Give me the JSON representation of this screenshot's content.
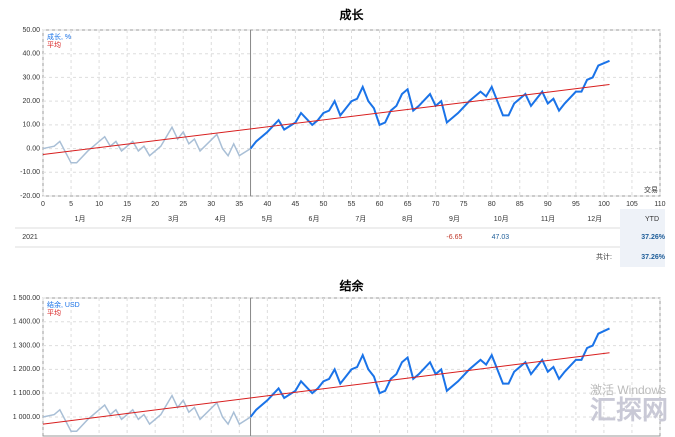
{
  "chart_data": [
    {
      "type": "line",
      "title": "成长",
      "x_corner_label": "交易",
      "grid": true,
      "legend": "top-left",
      "vline": 37,
      "xlim": [
        0,
        110
      ],
      "xticks": [
        0,
        5,
        10,
        15,
        20,
        25,
        30,
        35,
        40,
        45,
        50,
        55,
        60,
        65,
        70,
        75,
        80,
        85,
        90,
        95,
        100,
        105,
        110
      ],
      "show_xtick_labels": true,
      "ylim": [
        -20,
        50
      ],
      "yticks": [
        {
          "value": -20,
          "label": "-20.00"
        },
        {
          "value": -10,
          "label": "-10.00"
        },
        {
          "value": 0,
          "label": "0.00"
        },
        {
          "value": 10,
          "label": "10.00"
        },
        {
          "value": 20,
          "label": "20.00"
        },
        {
          "value": 30,
          "label": "30.00"
        },
        {
          "value": 40,
          "label": "40.00"
        },
        {
          "value": 50,
          "label": "50.00"
        }
      ],
      "series": [
        {
          "name": "成长, %",
          "color": "#1a73e8",
          "history_color": "#a9bfd6",
          "x": [
            0,
            2,
            3,
            5,
            6,
            8,
            11,
            12,
            13,
            14,
            16,
            17,
            18,
            19,
            21,
            22,
            23,
            24,
            25,
            26,
            27,
            28,
            31,
            32,
            33,
            34,
            35,
            37,
            38,
            40,
            42,
            43,
            45,
            46,
            48,
            49,
            50,
            51,
            52,
            53,
            55,
            56,
            57,
            58,
            59,
            60,
            61,
            62,
            63,
            64,
            65,
            66,
            67,
            69,
            70,
            71,
            72,
            74,
            76,
            78,
            79,
            80,
            81,
            82,
            83,
            84,
            86,
            87,
            89,
            90,
            91,
            92,
            93,
            95,
            96,
            97,
            98,
            99,
            101
          ],
          "values": [
            0,
            1,
            3,
            -6,
            -6,
            -1,
            5,
            1,
            3,
            -1,
            3,
            -1,
            1,
            -3,
            1,
            5,
            9,
            4,
            7,
            2,
            4,
            -1,
            6,
            0,
            -3,
            2,
            -3,
            0,
            3,
            7,
            12,
            8,
            11,
            15,
            10,
            12,
            15,
            16,
            20,
            14,
            20,
            21,
            26,
            20,
            17,
            10,
            11,
            16,
            18,
            23,
            25,
            16,
            18,
            23,
            18,
            20,
            11,
            15,
            20,
            24,
            22,
            26,
            20,
            14,
            14,
            19,
            23,
            18,
            24,
            19,
            21,
            16,
            19,
            24,
            24,
            29,
            30,
            35,
            37
          ]
        },
        {
          "name": "平均",
          "color": "#d81e1e",
          "x": [
            0,
            101
          ],
          "values": [
            -2.5,
            27
          ]
        }
      ],
      "table": {
        "months": [
          "1月",
          "2月",
          "3月",
          "4月",
          "5月",
          "6月",
          "7月",
          "8月",
          "9月",
          "10月",
          "11月",
          "12月"
        ],
        "total_header": "YTD",
        "rows": [
          {
            "year": "2021",
            "values": [
              null,
              null,
              null,
              null,
              null,
              null,
              null,
              null,
              -6.65,
              47.03,
              null,
              null
            ],
            "ytd": "37.26%"
          }
        ],
        "total_label": "共计:",
        "total": "37.26%"
      }
    },
    {
      "type": "line",
      "title": "结余",
      "grid": true,
      "legend": "top-left",
      "vline": 37,
      "xlim": [
        0,
        110
      ],
      "xticks": [
        0,
        5,
        10,
        15,
        20,
        25,
        30,
        35,
        40,
        45,
        50,
        55,
        60,
        65,
        70,
        75,
        80,
        85,
        90,
        95,
        100,
        105,
        110
      ],
      "show_xtick_labels": false,
      "ylim": [
        920,
        1500
      ],
      "yticks": [
        {
          "value": 1000,
          "label": "1 000.00"
        },
        {
          "value": 1100,
          "label": "1 100.00"
        },
        {
          "value": 1200,
          "label": "1 200.00"
        },
        {
          "value": 1300,
          "label": "1 300.00"
        },
        {
          "value": 1400,
          "label": "1 400.00"
        },
        {
          "value": 1500,
          "label": "1 500.00"
        }
      ],
      "series": [
        {
          "name": "结余, USD",
          "color": "#1a73e8",
          "history_color": "#a9bfd6",
          "x": [
            0,
            2,
            3,
            5,
            6,
            8,
            11,
            12,
            13,
            14,
            16,
            17,
            18,
            19,
            21,
            22,
            23,
            24,
            25,
            26,
            27,
            28,
            31,
            32,
            33,
            34,
            35,
            37,
            38,
            40,
            42,
            43,
            45,
            46,
            48,
            49,
            50,
            51,
            52,
            53,
            55,
            56,
            57,
            58,
            59,
            60,
            61,
            62,
            63,
            64,
            65,
            66,
            67,
            69,
            70,
            71,
            72,
            74,
            76,
            78,
            79,
            80,
            81,
            82,
            83,
            84,
            86,
            87,
            89,
            90,
            91,
            92,
            93,
            95,
            96,
            97,
            98,
            99,
            101
          ],
          "values": [
            1000,
            1010,
            1030,
            940,
            940,
            990,
            1050,
            1010,
            1030,
            990,
            1030,
            990,
            1010,
            970,
            1010,
            1050,
            1090,
            1040,
            1070,
            1020,
            1040,
            990,
            1060,
            1000,
            970,
            1020,
            970,
            1000,
            1030,
            1070,
            1120,
            1080,
            1110,
            1150,
            1100,
            1120,
            1150,
            1160,
            1200,
            1140,
            1200,
            1210,
            1260,
            1200,
            1170,
            1100,
            1110,
            1160,
            1180,
            1230,
            1250,
            1160,
            1180,
            1230,
            1180,
            1200,
            1110,
            1150,
            1200,
            1240,
            1220,
            1260,
            1200,
            1140,
            1140,
            1190,
            1230,
            1180,
            1240,
            1190,
            1210,
            1160,
            1190,
            1240,
            1240,
            1290,
            1300,
            1350,
            1372
          ]
        },
        {
          "name": "平均",
          "color": "#d81e1e",
          "x": [
            0,
            101
          ],
          "values": [
            970,
            1270
          ]
        }
      ]
    }
  ],
  "watermark": "激活 Windows",
  "logo": "汇探网"
}
